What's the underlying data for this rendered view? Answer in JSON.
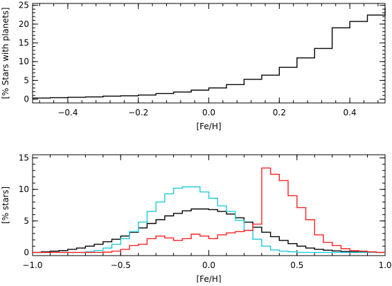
{
  "chart_data": [
    {
      "type": "line",
      "step": true,
      "xlabel": "[Fe/H]",
      "ylabel": "[% Stars with planets]",
      "xlim": [
        -0.5,
        0.5
      ],
      "ylim": [
        -1,
        25.5
      ],
      "xticks": [
        -0.4,
        -0.2,
        0.0,
        0.2,
        0.4
      ],
      "xtick_labels": [
        "−0.4",
        "−0.2",
        "0.0",
        "0.2",
        "0.4"
      ],
      "yticks": [
        0,
        5,
        10,
        15,
        20,
        25
      ],
      "ytick_labels": [
        "0",
        "5",
        "10",
        "15",
        "20",
        "25"
      ],
      "series": [
        {
          "color": "#000000",
          "edges": [
            -0.5,
            -0.45,
            -0.4,
            -0.35,
            -0.3,
            -0.25,
            -0.2,
            -0.15,
            -0.1,
            -0.05,
            0.0,
            0.05,
            0.1,
            0.15,
            0.2,
            0.25,
            0.3,
            0.35,
            0.4,
            0.45,
            0.5
          ],
          "values": [
            0.3,
            0.4,
            0.5,
            0.6,
            0.8,
            0.9,
            1.1,
            1.5,
            1.9,
            2.4,
            3.0,
            3.9,
            5.3,
            6.4,
            8.5,
            11.0,
            13.5,
            19.0,
            20.7,
            22.4,
            24.4
          ]
        }
      ]
    },
    {
      "type": "line",
      "step": true,
      "xlabel": "[Fe/H]",
      "ylabel": "[% stars]",
      "xlim": [
        -1.0,
        1.0
      ],
      "ylim": [
        -0.5,
        15.5
      ],
      "xticks": [
        -1.0,
        -0.5,
        0.0,
        0.5,
        1.0
      ],
      "xtick_labels": [
        "−1.0",
        "−0.5",
        "0.0",
        "0.5",
        "1.0"
      ],
      "yticks": [
        0,
        5,
        10,
        15
      ],
      "ytick_labels": [
        "0",
        "5",
        "10",
        "15"
      ],
      "bin_start": -1.0,
      "bin_width": 0.05,
      "series": [
        {
          "color": "#000000",
          "values": [
            0,
            0.1,
            0.2,
            0.3,
            0.5,
            0.7,
            1.0,
            1.3,
            1.7,
            2.1,
            2.6,
            3.2,
            3.9,
            4.6,
            5.2,
            5.8,
            6.2,
            6.6,
            6.9,
            6.9,
            6.8,
            6.5,
            6.1,
            5.5,
            4.8,
            4.0,
            3.2,
            2.5,
            1.9,
            1.4,
            1.0,
            0.7,
            0.5,
            0.35,
            0.25,
            0.15,
            0.1,
            0.05,
            0.02,
            0
          ]
        },
        {
          "color": "#1fc9dd",
          "values": [
            0,
            0,
            0,
            0,
            0,
            0,
            0.1,
            0.3,
            0.7,
            1.3,
            2.2,
            3.3,
            4.8,
            6.5,
            8.0,
            9.3,
            10.2,
            10.4,
            10.4,
            9.6,
            8.6,
            7.4,
            6.5,
            5.1,
            3.5,
            2.1,
            1.0,
            0.4,
            0.2,
            0.1,
            0,
            0,
            0,
            0,
            0,
            0,
            0,
            0,
            0,
            0
          ]
        },
        {
          "color": "#ff2020",
          "values": [
            0,
            0,
            0,
            0,
            0,
            0,
            0,
            0,
            0.05,
            0.2,
            0.5,
            1.1,
            1.3,
            2.2,
            2.6,
            2.3,
            1.9,
            2.2,
            2.9,
            2.6,
            2.2,
            2.8,
            3.1,
            3.3,
            3.5,
            4.5,
            13.4,
            12.4,
            11.4,
            9.0,
            7.1,
            5.2,
            2.8,
            1.6,
            1.1,
            0.6,
            0.3,
            0.2,
            0.1,
            0
          ]
        }
      ]
    }
  ]
}
